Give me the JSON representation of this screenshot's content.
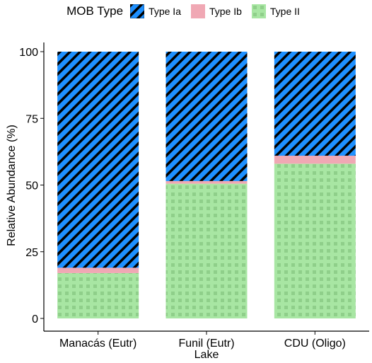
{
  "chart_data": {
    "type": "bar",
    "stacked": true,
    "legend_title": "MOB Type",
    "legend_position": "top",
    "xlabel": "Lake",
    "ylabel": "Relative Abundance (%)",
    "ylim": [
      0,
      100
    ],
    "yticks": [
      "0",
      "25",
      "50",
      "75",
      "100"
    ],
    "categories": [
      "Manacás (Eutr)",
      "Funil (Eutr)",
      "CDU (Oligo)"
    ],
    "series": [
      {
        "name": "Type II",
        "values": [
          17,
          50.5,
          58
        ],
        "color": "#a8e6a3",
        "pattern": "dots"
      },
      {
        "name": "Type Ib",
        "values": [
          2,
          1,
          3
        ],
        "color": "#f0a8b4",
        "pattern": "none"
      },
      {
        "name": "Type Ia",
        "values": [
          81,
          48.5,
          39
        ],
        "color": "#1e90ff",
        "pattern": "diagonal-stripes"
      }
    ],
    "legend_order": [
      "Type Ia",
      "Type Ib",
      "Type II"
    ],
    "grid": false
  }
}
